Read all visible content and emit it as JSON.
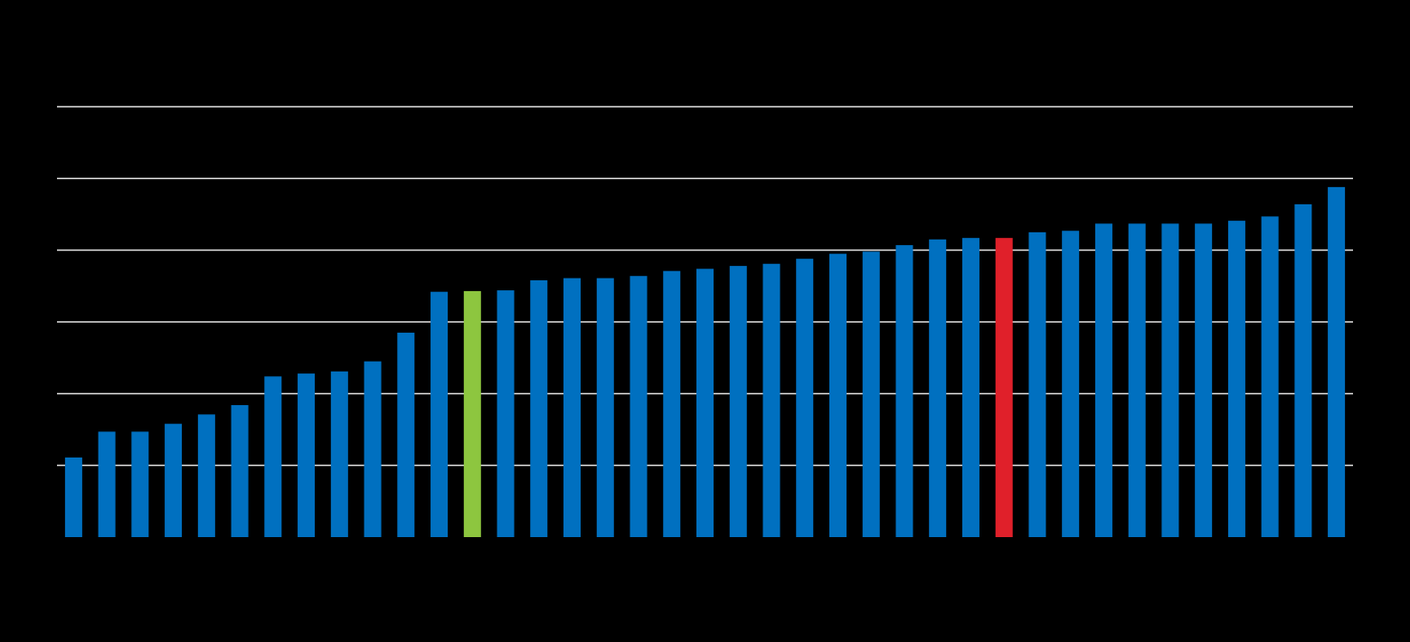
{
  "chart_data": {
    "type": "bar",
    "categories": [
      null,
      null,
      null,
      null,
      null,
      null,
      null,
      null,
      null,
      null,
      null,
      null,
      null,
      null,
      null,
      null,
      null,
      null,
      null,
      null,
      null,
      null,
      null,
      null,
      null,
      null,
      null,
      null,
      null,
      null,
      null,
      null,
      null,
      null,
      null,
      null,
      null,
      null,
      null
    ],
    "values": [
      1.11,
      1.47,
      1.47,
      1.58,
      1.71,
      1.84,
      2.24,
      2.28,
      2.31,
      2.45,
      2.85,
      3.42,
      3.43,
      3.44,
      3.58,
      3.61,
      3.61,
      3.64,
      3.71,
      3.74,
      3.78,
      3.81,
      3.88,
      3.95,
      3.98,
      4.07,
      4.15,
      4.17,
      4.17,
      4.25,
      4.27,
      4.37,
      4.37,
      4.37,
      4.37,
      4.41,
      4.47,
      4.64,
      4.88
    ],
    "colors": [
      "#0070c0",
      "#0070c0",
      "#0070c0",
      "#0070c0",
      "#0070c0",
      "#0070c0",
      "#0070c0",
      "#0070c0",
      "#0070c0",
      "#0070c0",
      "#0070c0",
      "#0070c0",
      "#8dc63f",
      "#0070c0",
      "#0070c0",
      "#0070c0",
      "#0070c0",
      "#0070c0",
      "#0070c0",
      "#0070c0",
      "#0070c0",
      "#0070c0",
      "#0070c0",
      "#0070c0",
      "#0070c0",
      "#0070c0",
      "#0070c0",
      "#0070c0",
      "#e0202a",
      "#0070c0",
      "#0070c0",
      "#0070c0",
      "#0070c0",
      "#0070c0",
      "#0070c0",
      "#0070c0",
      "#0070c0",
      "#0070c0",
      "#0070c0"
    ],
    "ylim": [
      0,
      6
    ],
    "yticks": [
      1,
      2,
      3,
      4,
      5,
      6
    ],
    "grid": true
  }
}
